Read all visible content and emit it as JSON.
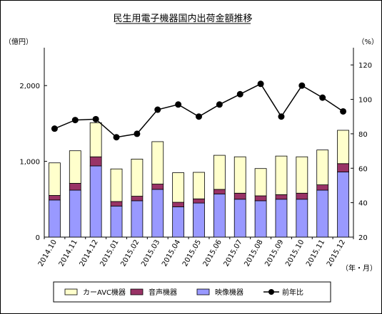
{
  "colors": {
    "car_avc": "#ffffcc",
    "audio": "#993366",
    "video": "#9999ff",
    "line": "#000000"
  },
  "chart_data": {
    "type": "bar",
    "title": "民生用電子機器国内出荷金額推移",
    "ylabel_left": "（億円）",
    "ylabel_right": "（%）",
    "xlabel": "（年・月）",
    "categories": [
      "2014.10",
      "2014.11",
      "2014.12",
      "2015.01",
      "2015.02",
      "2015.03",
      "2015.04",
      "2015.05",
      "2015.06",
      "2015.07",
      "2015.08",
      "2015.09",
      "2015.10",
      "2015.11",
      "2015.12"
    ],
    "series": [
      {
        "name": "映像機器",
        "stack": true,
        "color_key": "video",
        "values": [
          490,
          620,
          940,
          410,
          480,
          630,
          400,
          450,
          570,
          500,
          480,
          500,
          500,
          620,
          860
        ]
      },
      {
        "name": "音声機器",
        "stack": true,
        "color_key": "audio",
        "values": [
          60,
          90,
          120,
          60,
          60,
          70,
          60,
          55,
          60,
          80,
          65,
          60,
          80,
          70,
          110
        ]
      },
      {
        "name": "カーAVC機器",
        "stack": true,
        "color_key": "car_avc",
        "values": [
          430,
          430,
          450,
          430,
          490,
          560,
          390,
          350,
          450,
          480,
          360,
          510,
          480,
          460,
          440
        ]
      },
      {
        "name": "前年比",
        "type": "line",
        "axis": "right",
        "values": [
          83,
          88,
          88.5,
          78,
          80,
          94,
          97,
          90,
          97,
          103,
          109,
          90,
          108,
          101,
          93
        ]
      }
    ],
    "ylim_left": [
      0,
      2500
    ],
    "yticks_left": [
      "0",
      "1,000",
      "2,000"
    ],
    "ylim_right": [
      20,
      130
    ],
    "yticks_right": [
      "20",
      "40",
      "60",
      "80",
      "100",
      "120"
    ],
    "legend_order": [
      "カーAVC機器",
      "音声機器",
      "映像機器",
      "前年比"
    ],
    "legend_placement": "bottom",
    "grid": false
  }
}
